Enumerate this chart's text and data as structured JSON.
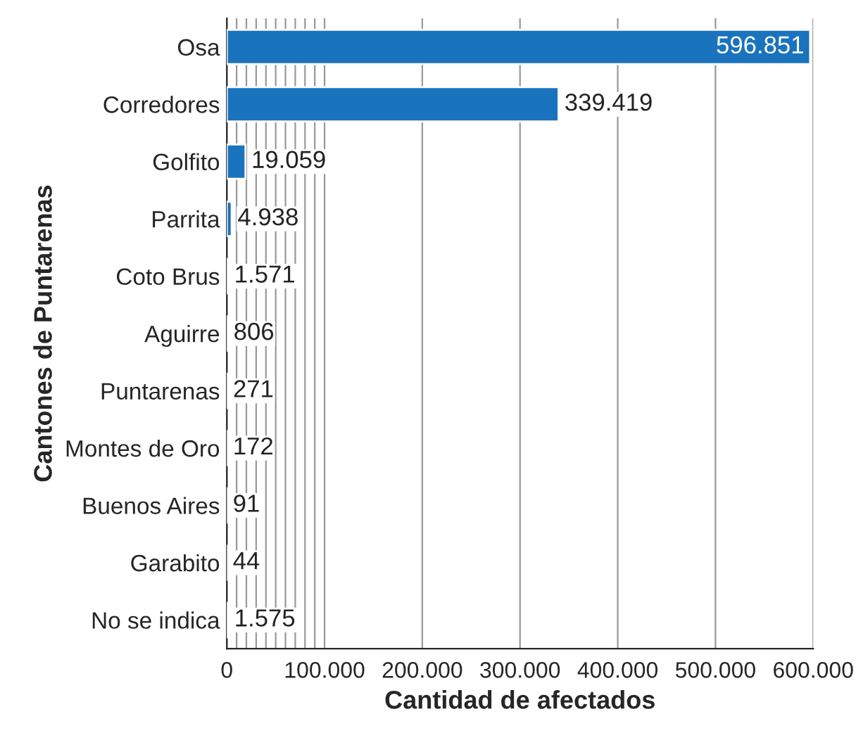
{
  "chart_data": {
    "type": "bar",
    "orientation": "horizontal",
    "xlabel": "Cantidad de afectados",
    "ylabel": "Cantones de Puntarenas",
    "categories": [
      "Osa",
      "Corredores",
      "Golfito",
      "Parrita",
      "Coto Brus",
      "Aguirre",
      "Puntarenas",
      "Montes de Oro",
      "Buenos Aires",
      "Garabito",
      "No se indica"
    ],
    "values": [
      596851,
      339419,
      19059,
      4938,
      1571,
      806,
      271,
      172,
      91,
      44,
      1575
    ],
    "value_labels": [
      "596.851",
      "339.419",
      "19.059",
      "4.938",
      "1.571",
      "806",
      "271",
      "172",
      "91",
      "44",
      "1.575"
    ],
    "color": "#1a73bd",
    "xlim": [
      0,
      600000
    ],
    "xticks": [
      0,
      {
        "value": 10000,
        "label": null
      },
      {
        "value": 20000,
        "label": null
      },
      {
        "value": 30000,
        "label": null
      },
      {
        "value": 40000,
        "label": null
      },
      {
        "value": 50000,
        "label": null
      },
      {
        "value": 60000,
        "label": null
      },
      {
        "value": 70000,
        "label": null
      },
      {
        "value": 80000,
        "label": null
      },
      {
        "value": 90000,
        "label": null
      },
      {
        "value": 100000,
        "label": "100.000"
      },
      {
        "value": 200000,
        "label": "200.000"
      },
      {
        "value": 300000,
        "label": "300.000"
      },
      {
        "value": 400000,
        "label": "400.000"
      },
      {
        "value": 500000,
        "label": "500.000"
      },
      {
        "value": 600000,
        "label": "600.000"
      }
    ],
    "grid": "x",
    "legend": false
  }
}
